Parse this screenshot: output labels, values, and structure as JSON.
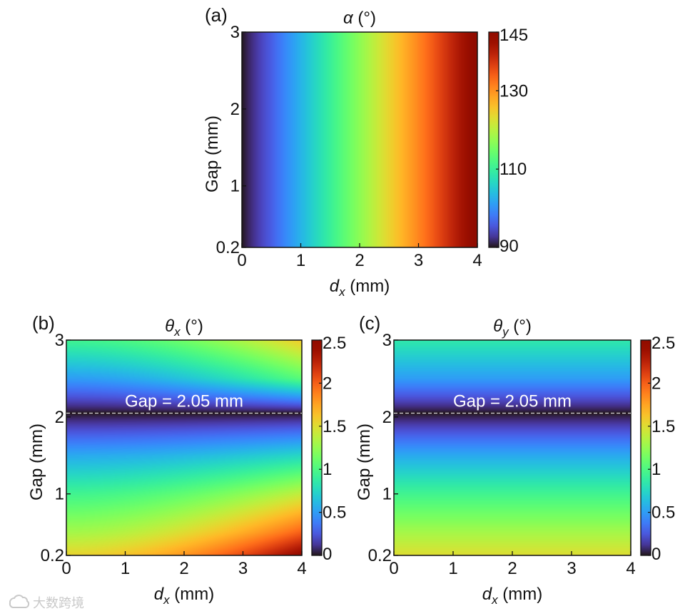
{
  "chart_data": [
    {
      "type": "heatmap",
      "panel": "(a)",
      "title_symbol": "α",
      "title_sub": "",
      "title_unit": "(°)",
      "xlabel_symbol": "d",
      "xlabel_sub": "x",
      "xlabel_unit": "(mm)",
      "ylabel": "Gap (mm)",
      "xlim": [
        0,
        4
      ],
      "ylim": [
        0.2,
        3
      ],
      "xticks": [
        0,
        1,
        2,
        3,
        4
      ],
      "yticks": [
        0.2,
        1,
        2,
        3
      ],
      "xtick_labels": [
        "0",
        "1",
        "2",
        "3",
        "4"
      ],
      "ytick_labels": [
        "0.2",
        "1",
        "2",
        "3"
      ],
      "colorbar": {
        "min": 90,
        "max": 145,
        "ticks": [
          90,
          110,
          130,
          145
        ],
        "tick_labels": [
          "90",
          "110",
          "130",
          "145"
        ],
        "colormap": "turbo"
      },
      "annotation": null,
      "field": {
        "depends_on": "dx",
        "x": [
          0,
          0.5,
          1,
          1.5,
          2,
          2.5,
          3,
          3.5,
          4
        ],
        "values": [
          90,
          96,
          103,
          110,
          117,
          124,
          131,
          138,
          145
        ]
      }
    },
    {
      "type": "heatmap",
      "panel": "(b)",
      "title_symbol": "θ",
      "title_sub": "x",
      "title_unit": "(°)",
      "xlabel_symbol": "d",
      "xlabel_sub": "x",
      "xlabel_unit": "(mm)",
      "ylabel": "Gap (mm)",
      "xlim": [
        0,
        4
      ],
      "ylim": [
        0.2,
        3
      ],
      "xticks": [
        0,
        1,
        2,
        3,
        4
      ],
      "yticks": [
        0.2,
        1,
        2,
        3
      ],
      "xtick_labels": [
        "0",
        "1",
        "2",
        "3",
        "4"
      ],
      "ytick_labels": [
        "0.2",
        "1",
        "2",
        "3"
      ],
      "colorbar": {
        "min": 0,
        "max": 2.5,
        "ticks": [
          0,
          0.5,
          1,
          1.5,
          2,
          2.5
        ],
        "tick_labels": [
          "0",
          "0.5",
          "1",
          "1.5",
          "2",
          "2.5"
        ],
        "colormap": "turbo"
      },
      "annotation": {
        "text": "Gap = 2.05 mm",
        "gap": 2.05,
        "dashed_line": true
      },
      "field": {
        "depends_on": "gap_and_dx",
        "gap": [
          0.2,
          0.5,
          1.0,
          1.5,
          2.05,
          2.5,
          3.0
        ],
        "values_at_dx0": [
          1.55,
          1.3,
          0.95,
          0.55,
          0.0,
          0.5,
          0.95
        ],
        "values_at_dx4": [
          2.45,
          2.0,
          1.4,
          0.75,
          0.0,
          1.05,
          1.6
        ]
      }
    },
    {
      "type": "heatmap",
      "panel": "(c)",
      "title_symbol": "θ",
      "title_sub": "y",
      "title_unit": "(°)",
      "xlabel_symbol": "d",
      "xlabel_sub": "x",
      "xlabel_unit": "(mm)",
      "ylabel": "Gap (mm)",
      "xlim": [
        0,
        4
      ],
      "ylim": [
        0.2,
        3
      ],
      "xticks": [
        0,
        1,
        2,
        3,
        4
      ],
      "yticks": [
        0.2,
        1,
        2,
        3
      ],
      "xtick_labels": [
        "0",
        "1",
        "2",
        "3",
        "4"
      ],
      "ytick_labels": [
        "0.2",
        "1",
        "2",
        "3"
      ],
      "colorbar": {
        "min": 0,
        "max": 2.5,
        "ticks": [
          0,
          0.5,
          1,
          1.5,
          2,
          2.5
        ],
        "tick_labels": [
          "0",
          "0.5",
          "1",
          "1.5",
          "2",
          "2.5"
        ],
        "colormap": "turbo"
      },
      "annotation": {
        "text": "Gap = 2.05 mm",
        "gap": 2.05,
        "dashed_line": true
      },
      "field": {
        "depends_on": "gap",
        "gap": [
          0.2,
          0.5,
          1.0,
          1.5,
          2.05,
          2.5,
          3.0
        ],
        "values": [
          1.5,
          1.3,
          0.95,
          0.55,
          0.0,
          0.5,
          0.85
        ]
      }
    }
  ],
  "watermark": {
    "text": "大数跨境",
    "logo_icon": "cloud-logo-icon"
  }
}
